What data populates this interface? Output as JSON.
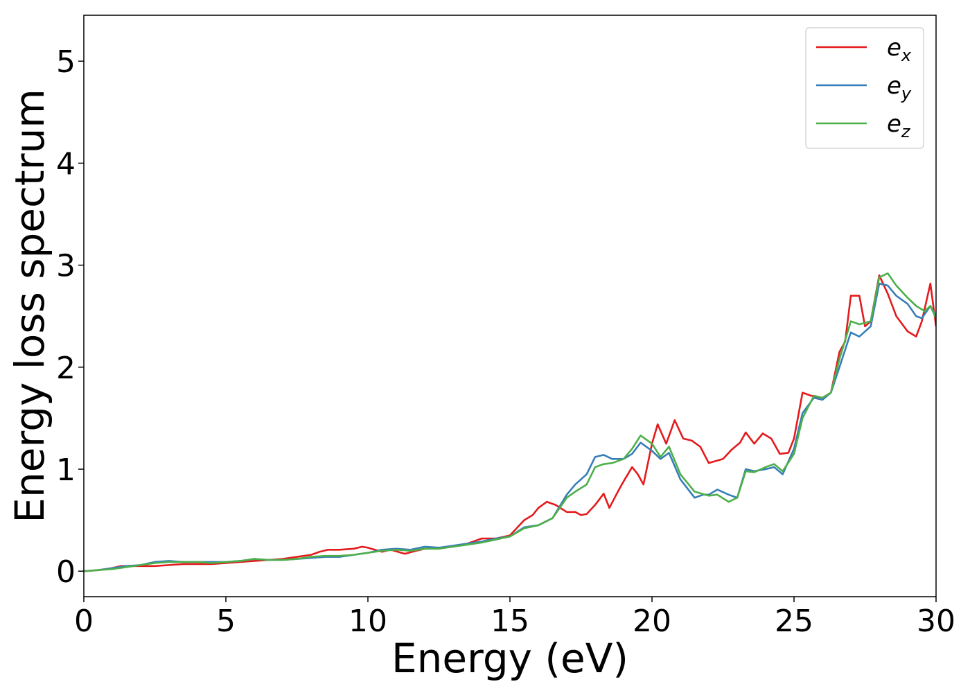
{
  "chart_data": {
    "type": "line",
    "xlabel": "Energy (eV)",
    "ylabel": "Energy loss spectrum",
    "xlim": [
      0,
      30
    ],
    "ylim": [
      -0.25,
      5.45
    ],
    "xticks": [
      0,
      5,
      10,
      15,
      20,
      25,
      30
    ],
    "yticks": [
      0,
      1,
      2,
      3,
      4,
      5
    ],
    "grid": false,
    "legend_position": "top-right",
    "series": [
      {
        "name_base": "e",
        "name_sub": "x",
        "color": "#e41a1c",
        "points": [
          [
            0,
            0.0
          ],
          [
            0.5,
            0.01
          ],
          [
            1,
            0.03
          ],
          [
            1.3,
            0.05
          ],
          [
            1.7,
            0.05
          ],
          [
            2.2,
            0.05
          ],
          [
            2.5,
            0.05
          ],
          [
            3,
            0.06
          ],
          [
            3.5,
            0.07
          ],
          [
            4,
            0.07
          ],
          [
            4.5,
            0.07
          ],
          [
            5,
            0.08
          ],
          [
            5.5,
            0.09
          ],
          [
            6,
            0.1
          ],
          [
            6.5,
            0.11
          ],
          [
            7,
            0.12
          ],
          [
            7.5,
            0.14
          ],
          [
            8,
            0.16
          ],
          [
            8.3,
            0.19
          ],
          [
            8.6,
            0.21
          ],
          [
            9,
            0.21
          ],
          [
            9.5,
            0.22
          ],
          [
            9.8,
            0.24
          ],
          [
            10,
            0.23
          ],
          [
            10.5,
            0.19
          ],
          [
            10.8,
            0.21
          ],
          [
            11.3,
            0.17
          ],
          [
            11.7,
            0.2
          ],
          [
            12,
            0.22
          ],
          [
            12.5,
            0.23
          ],
          [
            13,
            0.24
          ],
          [
            13.5,
            0.27
          ],
          [
            13.8,
            0.3
          ],
          [
            14,
            0.32
          ],
          [
            14.5,
            0.32
          ],
          [
            15,
            0.35
          ],
          [
            15.5,
            0.5
          ],
          [
            15.8,
            0.55
          ],
          [
            16,
            0.62
          ],
          [
            16.3,
            0.68
          ],
          [
            16.6,
            0.65
          ],
          [
            17,
            0.58
          ],
          [
            17.3,
            0.58
          ],
          [
            17.5,
            0.55
          ],
          [
            17.7,
            0.56
          ],
          [
            18,
            0.65
          ],
          [
            18.3,
            0.76
          ],
          [
            18.5,
            0.62
          ],
          [
            18.8,
            0.78
          ],
          [
            19,
            0.88
          ],
          [
            19.3,
            1.02
          ],
          [
            19.5,
            0.95
          ],
          [
            19.7,
            0.85
          ],
          [
            20,
            1.25
          ],
          [
            20.2,
            1.44
          ],
          [
            20.5,
            1.25
          ],
          [
            20.8,
            1.48
          ],
          [
            21.1,
            1.3
          ],
          [
            21.4,
            1.28
          ],
          [
            21.7,
            1.22
          ],
          [
            22,
            1.06
          ],
          [
            22.5,
            1.1
          ],
          [
            22.8,
            1.19
          ],
          [
            23.1,
            1.26
          ],
          [
            23.3,
            1.36
          ],
          [
            23.6,
            1.25
          ],
          [
            23.9,
            1.35
          ],
          [
            24.2,
            1.3
          ],
          [
            24.5,
            1.15
          ],
          [
            24.8,
            1.16
          ],
          [
            25,
            1.3
          ],
          [
            25.3,
            1.75
          ],
          [
            25.6,
            1.72
          ],
          [
            26,
            1.7
          ],
          [
            26.3,
            1.75
          ],
          [
            26.6,
            2.15
          ],
          [
            26.8,
            2.25
          ],
          [
            27,
            2.7
          ],
          [
            27.3,
            2.7
          ],
          [
            27.5,
            2.4
          ],
          [
            27.7,
            2.45
          ],
          [
            28,
            2.9
          ],
          [
            28.3,
            2.72
          ],
          [
            28.6,
            2.5
          ],
          [
            29,
            2.35
          ],
          [
            29.3,
            2.3
          ],
          [
            29.5,
            2.45
          ],
          [
            29.8,
            2.82
          ],
          [
            30,
            2.4
          ]
        ]
      },
      {
        "name_base": "e",
        "name_sub": "y",
        "color": "#377eb8",
        "points": [
          [
            0,
            0.0
          ],
          [
            0.5,
            0.01
          ],
          [
            1,
            0.03
          ],
          [
            1.5,
            0.05
          ],
          [
            2,
            0.06
          ],
          [
            2.5,
            0.09
          ],
          [
            3,
            0.1
          ],
          [
            3.5,
            0.09
          ],
          [
            4,
            0.09
          ],
          [
            4.5,
            0.09
          ],
          [
            5,
            0.09
          ],
          [
            5.5,
            0.1
          ],
          [
            6,
            0.12
          ],
          [
            6.5,
            0.11
          ],
          [
            7,
            0.11
          ],
          [
            7.5,
            0.12
          ],
          [
            8,
            0.13
          ],
          [
            8.5,
            0.14
          ],
          [
            9,
            0.14
          ],
          [
            9.5,
            0.16
          ],
          [
            10,
            0.18
          ],
          [
            10.5,
            0.21
          ],
          [
            11,
            0.22
          ],
          [
            11.5,
            0.21
          ],
          [
            12,
            0.24
          ],
          [
            12.5,
            0.23
          ],
          [
            13,
            0.25
          ],
          [
            13.5,
            0.27
          ],
          [
            14,
            0.29
          ],
          [
            14.5,
            0.32
          ],
          [
            15,
            0.34
          ],
          [
            15.5,
            0.43
          ],
          [
            16,
            0.45
          ],
          [
            16.5,
            0.52
          ],
          [
            17,
            0.75
          ],
          [
            17.3,
            0.85
          ],
          [
            17.7,
            0.95
          ],
          [
            18,
            1.12
          ],
          [
            18.3,
            1.14
          ],
          [
            18.6,
            1.1
          ],
          [
            19,
            1.1
          ],
          [
            19.3,
            1.15
          ],
          [
            19.6,
            1.26
          ],
          [
            20,
            1.18
          ],
          [
            20.3,
            1.1
          ],
          [
            20.6,
            1.16
          ],
          [
            21,
            0.9
          ],
          [
            21.5,
            0.72
          ],
          [
            21.8,
            0.75
          ],
          [
            22,
            0.75
          ],
          [
            22.3,
            0.8
          ],
          [
            22.7,
            0.75
          ],
          [
            23,
            0.72
          ],
          [
            23.3,
            1.0
          ],
          [
            23.6,
            0.98
          ],
          [
            24,
            1.0
          ],
          [
            24.3,
            1.02
          ],
          [
            24.6,
            0.95
          ],
          [
            25,
            1.2
          ],
          [
            25.3,
            1.55
          ],
          [
            25.7,
            1.7
          ],
          [
            26,
            1.68
          ],
          [
            26.3,
            1.75
          ],
          [
            26.6,
            2.0
          ],
          [
            27,
            2.34
          ],
          [
            27.3,
            2.3
          ],
          [
            27.7,
            2.4
          ],
          [
            28,
            2.82
          ],
          [
            28.3,
            2.8
          ],
          [
            28.6,
            2.7
          ],
          [
            29,
            2.62
          ],
          [
            29.3,
            2.5
          ],
          [
            29.5,
            2.48
          ],
          [
            29.8,
            2.6
          ],
          [
            30,
            2.5
          ]
        ]
      },
      {
        "name_base": "e",
        "name_sub": "z",
        "color": "#4daf4a",
        "points": [
          [
            0,
            0.0
          ],
          [
            0.5,
            0.01
          ],
          [
            1,
            0.02
          ],
          [
            1.5,
            0.04
          ],
          [
            2,
            0.06
          ],
          [
            2.5,
            0.08
          ],
          [
            3,
            0.09
          ],
          [
            3.5,
            0.09
          ],
          [
            4,
            0.09
          ],
          [
            4.5,
            0.08
          ],
          [
            5,
            0.09
          ],
          [
            5.5,
            0.1
          ],
          [
            6,
            0.12
          ],
          [
            6.5,
            0.11
          ],
          [
            7,
            0.11
          ],
          [
            7.5,
            0.12
          ],
          [
            8,
            0.14
          ],
          [
            8.5,
            0.15
          ],
          [
            9,
            0.15
          ],
          [
            9.5,
            0.16
          ],
          [
            10,
            0.18
          ],
          [
            10.5,
            0.2
          ],
          [
            11,
            0.21
          ],
          [
            11.5,
            0.2
          ],
          [
            12,
            0.22
          ],
          [
            12.5,
            0.22
          ],
          [
            13,
            0.24
          ],
          [
            13.5,
            0.26
          ],
          [
            14,
            0.28
          ],
          [
            14.5,
            0.31
          ],
          [
            15,
            0.34
          ],
          [
            15.5,
            0.42
          ],
          [
            16,
            0.45
          ],
          [
            16.5,
            0.52
          ],
          [
            17,
            0.72
          ],
          [
            17.3,
            0.78
          ],
          [
            17.7,
            0.85
          ],
          [
            18,
            1.02
          ],
          [
            18.3,
            1.05
          ],
          [
            18.6,
            1.06
          ],
          [
            19,
            1.1
          ],
          [
            19.3,
            1.2
          ],
          [
            19.6,
            1.33
          ],
          [
            20,
            1.25
          ],
          [
            20.3,
            1.12
          ],
          [
            20.6,
            1.22
          ],
          [
            21,
            0.95
          ],
          [
            21.5,
            0.78
          ],
          [
            22,
            0.74
          ],
          [
            22.3,
            0.75
          ],
          [
            22.7,
            0.68
          ],
          [
            23,
            0.72
          ],
          [
            23.3,
            0.98
          ],
          [
            23.6,
            0.97
          ],
          [
            24,
            1.02
          ],
          [
            24.3,
            1.05
          ],
          [
            24.6,
            0.98
          ],
          [
            25,
            1.15
          ],
          [
            25.3,
            1.5
          ],
          [
            25.7,
            1.72
          ],
          [
            26,
            1.7
          ],
          [
            26.3,
            1.75
          ],
          [
            26.6,
            2.08
          ],
          [
            27,
            2.45
          ],
          [
            27.3,
            2.42
          ],
          [
            27.7,
            2.45
          ],
          [
            28,
            2.88
          ],
          [
            28.3,
            2.92
          ],
          [
            28.6,
            2.8
          ],
          [
            29,
            2.68
          ],
          [
            29.3,
            2.6
          ],
          [
            29.6,
            2.55
          ],
          [
            29.8,
            2.6
          ],
          [
            30,
            2.48
          ]
        ]
      }
    ]
  }
}
